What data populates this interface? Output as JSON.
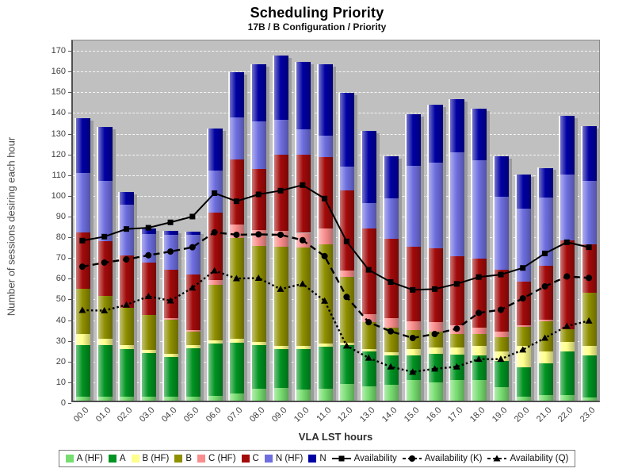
{
  "header": {
    "title": "Scheduling Priority",
    "subtitle": "17B / B Configuration /  Priority"
  },
  "y_axis": {
    "label": "Number of sessions desiring each hour",
    "min": 0,
    "max": 170,
    "step": 10
  },
  "x_axis": {
    "label": "VLA LST hours"
  },
  "plot_style": {
    "background": "#c0c0c0",
    "gridline": "#ffffff",
    "shadow": "#9b9b9b"
  },
  "chart_data": {
    "type": "bar",
    "stacked": true,
    "grid": true,
    "legend_position": "bottom",
    "title": "Scheduling Priority",
    "subtitle": "17B / B Configuration /  Priority",
    "xlabel": "VLA LST hours",
    "ylabel": "Number of sessions desiring each hour",
    "ylim": [
      0,
      170
    ],
    "categories": [
      "00.0",
      "01.0",
      "02.0",
      "03.0",
      "04.0",
      "05.0",
      "06.0",
      "07.0",
      "08.0",
      "09.0",
      "10.0",
      "11.0",
      "12.0",
      "13.0",
      "14.0",
      "15.0",
      "16.0",
      "17.0",
      "18.0",
      "19.0",
      "20.0",
      "21.0",
      "22.0",
      "23.0"
    ],
    "bar_series": [
      {
        "name": "A (HF)",
        "color": "#77DD70",
        "values": [
          2,
          2,
          2,
          2,
          2,
          2,
          2.4,
          3.3,
          5.9,
          6,
          5.4,
          5.9,
          8,
          7,
          7.8,
          10,
          9,
          10,
          10,
          6.5,
          2,
          2.7,
          2.7,
          1.4
        ]
      },
      {
        "name": "A",
        "color": "#009321",
        "values": [
          25,
          25,
          23,
          21,
          19,
          23.4,
          25.2,
          24.7,
          21.1,
          19,
          19.6,
          20.1,
          18.9,
          16.7,
          14,
          11.8,
          13.5,
          12.1,
          11.8,
          12.8,
          14.1,
          15.3,
          21,
          20.4
        ]
      },
      {
        "name": "B (HF)",
        "color": "#FFFF8C",
        "values": [
          5,
          3,
          2,
          1.5,
          1.5,
          1.6,
          1.4,
          2,
          1.5,
          1.5,
          1.5,
          1.6,
          1.1,
          1.3,
          1.7,
          3.2,
          3.1,
          3.5,
          4.5,
          4.4,
          10.2,
          5.7,
          4.5,
          4.5
        ]
      },
      {
        "name": "B",
        "color": "#8F8F00",
        "values": [
          22,
          20.5,
          18,
          17,
          16.5,
          6.3,
          27,
          48.6,
          46.3,
          47.7,
          47.5,
          47.8,
          31.8,
          12.8,
          11.7,
          8.9,
          7.7,
          6.4,
          5.7,
          7,
          9.2,
          14.7,
          6.4,
          25.7
        ]
      },
      {
        "name": "C (HF)",
        "color": "#F98C8C",
        "values": [
          0,
          0,
          0,
          0,
          1,
          0.7,
          2.4,
          6.4,
          7.6,
          7.6,
          7,
          7.7,
          2.9,
          3.8,
          4.5,
          4.5,
          4.5,
          4.5,
          3.2,
          2.6,
          1,
          0.6,
          0,
          0
        ]
      },
      {
        "name": "C",
        "color": "#A30A0A",
        "values": [
          27,
          26.5,
          25,
          25,
          23,
          27,
          32.3,
          31.6,
          29.4,
          37,
          37.8,
          34.4,
          38.9,
          41.5,
          38.3,
          35.8,
          35.7,
          33.2,
          33.2,
          30,
          21,
          26.2,
          42.7,
          23.4
        ]
      },
      {
        "name": "N (HF)",
        "color": "#6E6EE0",
        "values": [
          29,
          29,
          24.6,
          14,
          17,
          19,
          20.3,
          20.1,
          23,
          16.6,
          12.2,
          10.5,
          11.5,
          12.1,
          19.7,
          39.2,
          41.2,
          50.1,
          47.6,
          35.1,
          35.1,
          32.9,
          31.9,
          30.6
        ]
      },
      {
        "name": "N",
        "color": "#0000A3",
        "values": [
          26.5,
          26,
          6.3,
          2.5,
          2,
          1.5,
          20.5,
          21.9,
          27.6,
          31.1,
          32.5,
          34.5,
          35.4,
          35.1,
          20.1,
          24.8,
          28.1,
          25.6,
          25,
          19.6,
          16.4,
          14.3,
          28.1,
          26.6
        ]
      }
    ],
    "line_series": [
      {
        "name": "Availability",
        "marker": "square",
        "dash": "solid",
        "color": "#000000",
        "values": [
          78.4,
          80.3,
          84,
          84.6,
          87.2,
          90,
          101.3,
          97.4,
          100.7,
          102.5,
          105.2,
          98.7,
          78,
          64.3,
          58.4,
          54.6,
          55,
          57.5,
          60.8,
          62,
          65.2,
          72.2,
          77.6,
          75.2
        ]
      },
      {
        "name": "Availability (K)",
        "marker": "circle",
        "dash": "dashed",
        "color": "#000000",
        "values": [
          65.8,
          67.8,
          69.3,
          71.3,
          73.1,
          75.2,
          82.4,
          81.2,
          81.4,
          81.2,
          78.6,
          70.9,
          51.2,
          39,
          34.6,
          31.4,
          33.3,
          35.9,
          43.5,
          45,
          50.5,
          56.3,
          61.1,
          60.4
        ]
      },
      {
        "name": "Availability (Q)",
        "marker": "triangle",
        "dash": "dotted",
        "color": "#000000",
        "values": [
          44.8,
          44.6,
          47.4,
          51.5,
          49.4,
          55.6,
          63.9,
          60.1,
          60.3,
          55,
          57.5,
          49.3,
          27.6,
          21.8,
          17.5,
          15,
          16.5,
          17.5,
          21.2,
          21.2,
          25.7,
          31.4,
          37.1,
          39.7
        ]
      }
    ]
  }
}
